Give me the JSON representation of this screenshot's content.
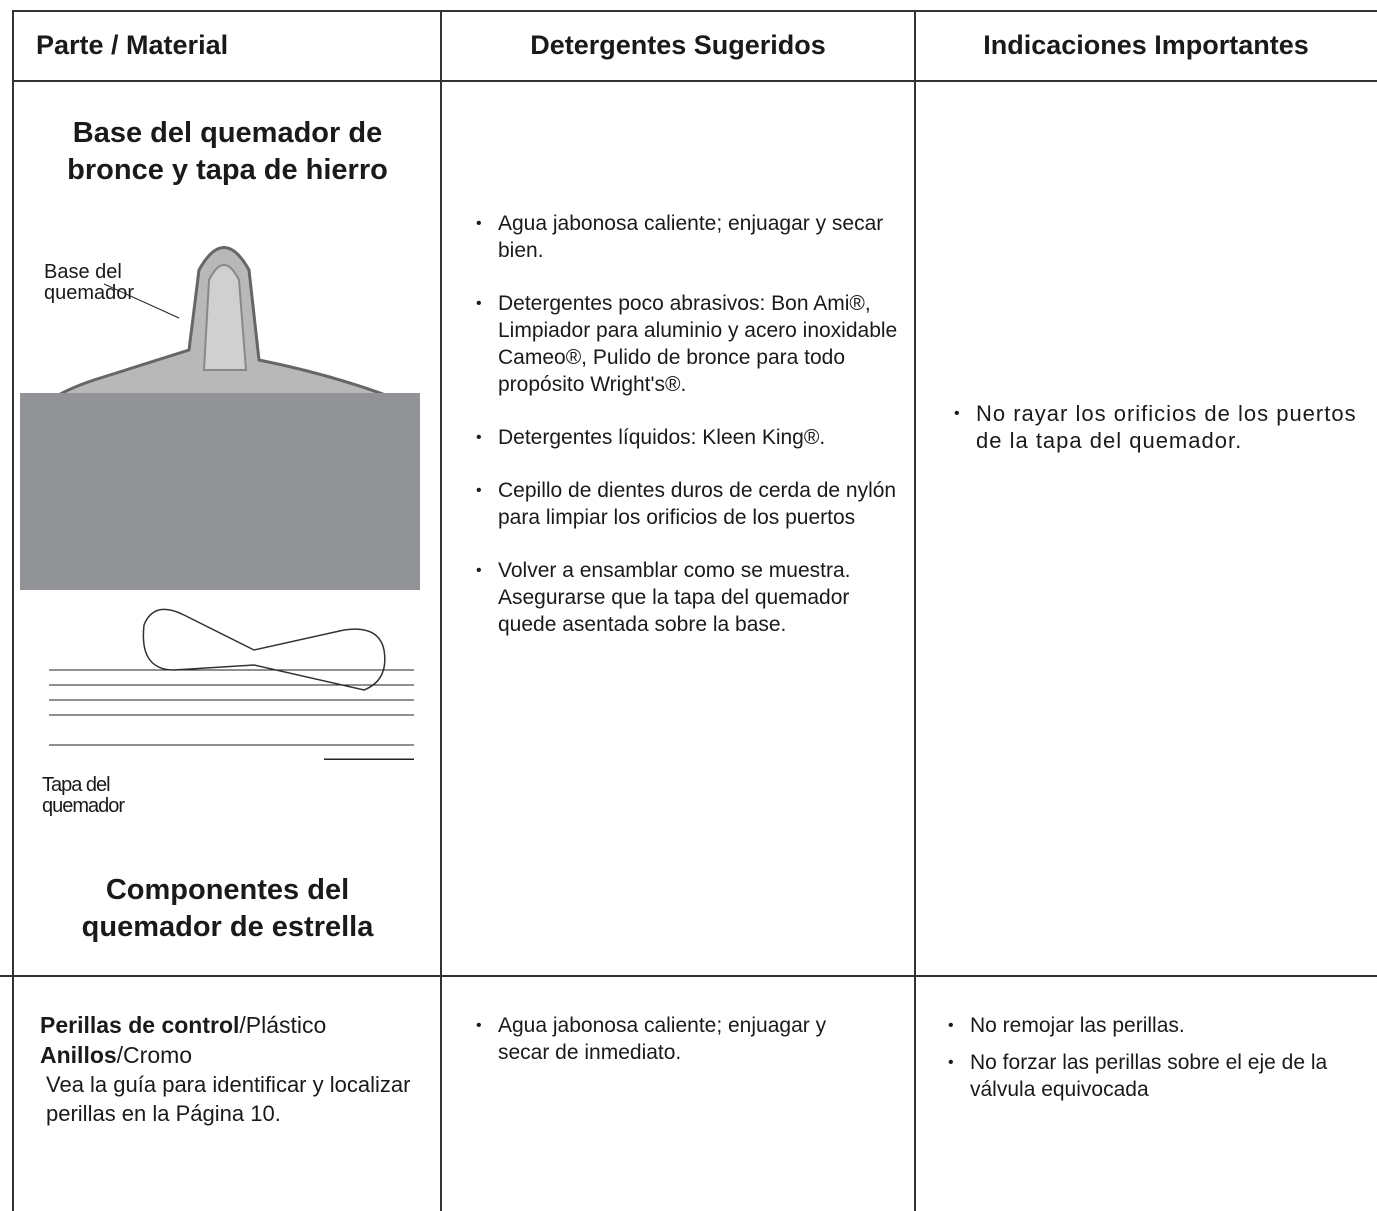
{
  "table": {
    "header": [
      "Parte / Material",
      "Detergentes Sugeridos",
      "Indicaciones Importantes"
    ],
    "rows": [
      {
        "part": {
          "title": "Base del quemador de bronce y tapa de hierro",
          "image_labels": [
            "Base del quemador",
            "Tapa del quemador"
          ],
          "caption": "Componentes del quemador de estrella"
        },
        "detergents": [
          "Agua jabonosa caliente; enjuagar y secar bien.",
          "Detergentes poco abrasivos: Bon Ami®, Limpiador para aluminio y acero inoxidable Cameo®, Pulido de bronce para todo propósito Wright's®.",
          "Detergentes líquidos: Kleen King®.",
          "Cepillo de dientes duros de cerda de nylón para limpiar los orificios de los puertos",
          "Volver a ensamblar como se muestra. Asegurarse que la tapa del quemador quede asentada sobre la base."
        ],
        "notes": [
          "No rayar los orificios de los puertos de la tapa del quemador."
        ]
      },
      {
        "part": {
          "name1": "Perillas de control",
          "material1": "/Plástico",
          "name2": "Anillos",
          "material2": "/Cromo",
          "note": "Vea la guía para identificar y localizar perillas en la Página 10."
        },
        "detergents": [
          "Agua jabonosa caliente; enjuagar y secar de inmediato."
        ],
        "notes": [
          "No remojar las perillas.",
          "No forzar las perillas sobre el eje de la válvula equivocada"
        ]
      }
    ]
  }
}
